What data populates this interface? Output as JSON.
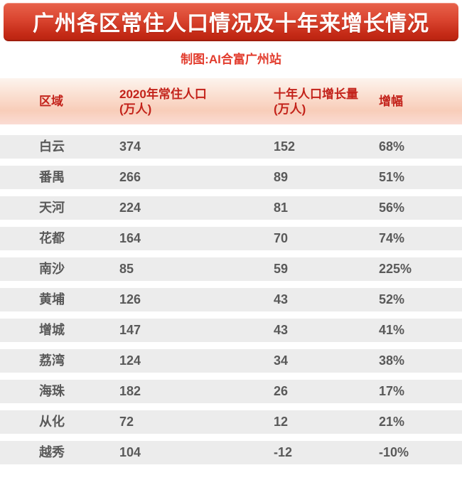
{
  "banner": {
    "title": "广州各区常住人口情况及十年来增长情况"
  },
  "subtitle": "制图:AI合富广州站",
  "colors": {
    "banner_red_top": "#e8634b",
    "banner_red_bottom": "#bb2411",
    "subtitle_text": "#e23c2d",
    "header_band_top": "#fdf4ee",
    "header_band_bottom": "#f8cdb9",
    "header_text": "#c3231b",
    "row_background": "#ececec",
    "row_text": "#595959"
  },
  "table": {
    "headers": [
      {
        "line1": "区域",
        "line2": ""
      },
      {
        "line1": "2020年常住人口",
        "line2": "(万人)"
      },
      {
        "line1": "十年人口增长量",
        "line2": "(万人)"
      },
      {
        "line1": "增幅",
        "line2": ""
      }
    ],
    "rows": [
      {
        "district": "白云",
        "population": "374",
        "growth": "152",
        "rate": "68%"
      },
      {
        "district": "番禺",
        "population": "266",
        "growth": "89",
        "rate": "51%"
      },
      {
        "district": "天河",
        "population": "224",
        "growth": "81",
        "rate": "56%"
      },
      {
        "district": "花都",
        "population": "164",
        "growth": "70",
        "rate": "74%"
      },
      {
        "district": "南沙",
        "population": "85",
        "growth": "59",
        "rate": "225%"
      },
      {
        "district": "黄埔",
        "population": "126",
        "growth": "43",
        "rate": "52%"
      },
      {
        "district": "增城",
        "population": "147",
        "growth": "43",
        "rate": "41%"
      },
      {
        "district": "荔湾",
        "population": "124",
        "growth": "34",
        "rate": "38%"
      },
      {
        "district": "海珠",
        "population": "182",
        "growth": "26",
        "rate": "17%"
      },
      {
        "district": "从化",
        "population": "72",
        "growth": "12",
        "rate": "21%"
      },
      {
        "district": "越秀",
        "population": "104",
        "growth": "-12",
        "rate": "-10%"
      }
    ]
  },
  "chart_data": {
    "type": "table",
    "title": "广州各区常住人口情况及十年来增长情况",
    "subtitle": "制图:AI合富广州站",
    "columns": [
      "区域",
      "2020年常住人口（万人）",
      "十年人口增长量（万人）",
      "增幅"
    ],
    "rows": [
      [
        "白云",
        374,
        152,
        "68%"
      ],
      [
        "番禺",
        266,
        89,
        "51%"
      ],
      [
        "天河",
        224,
        81,
        "56%"
      ],
      [
        "花都",
        164,
        70,
        "74%"
      ],
      [
        "南沙",
        85,
        59,
        "225%"
      ],
      [
        "黄埔",
        126,
        43,
        "52%"
      ],
      [
        "增城",
        147,
        43,
        "41%"
      ],
      [
        "荔湾",
        124,
        34,
        "38%"
      ],
      [
        "海珠",
        182,
        26,
        "17%"
      ],
      [
        "从化",
        72,
        12,
        "21%"
      ],
      [
        "越秀",
        104,
        -12,
        "-10%"
      ]
    ]
  }
}
